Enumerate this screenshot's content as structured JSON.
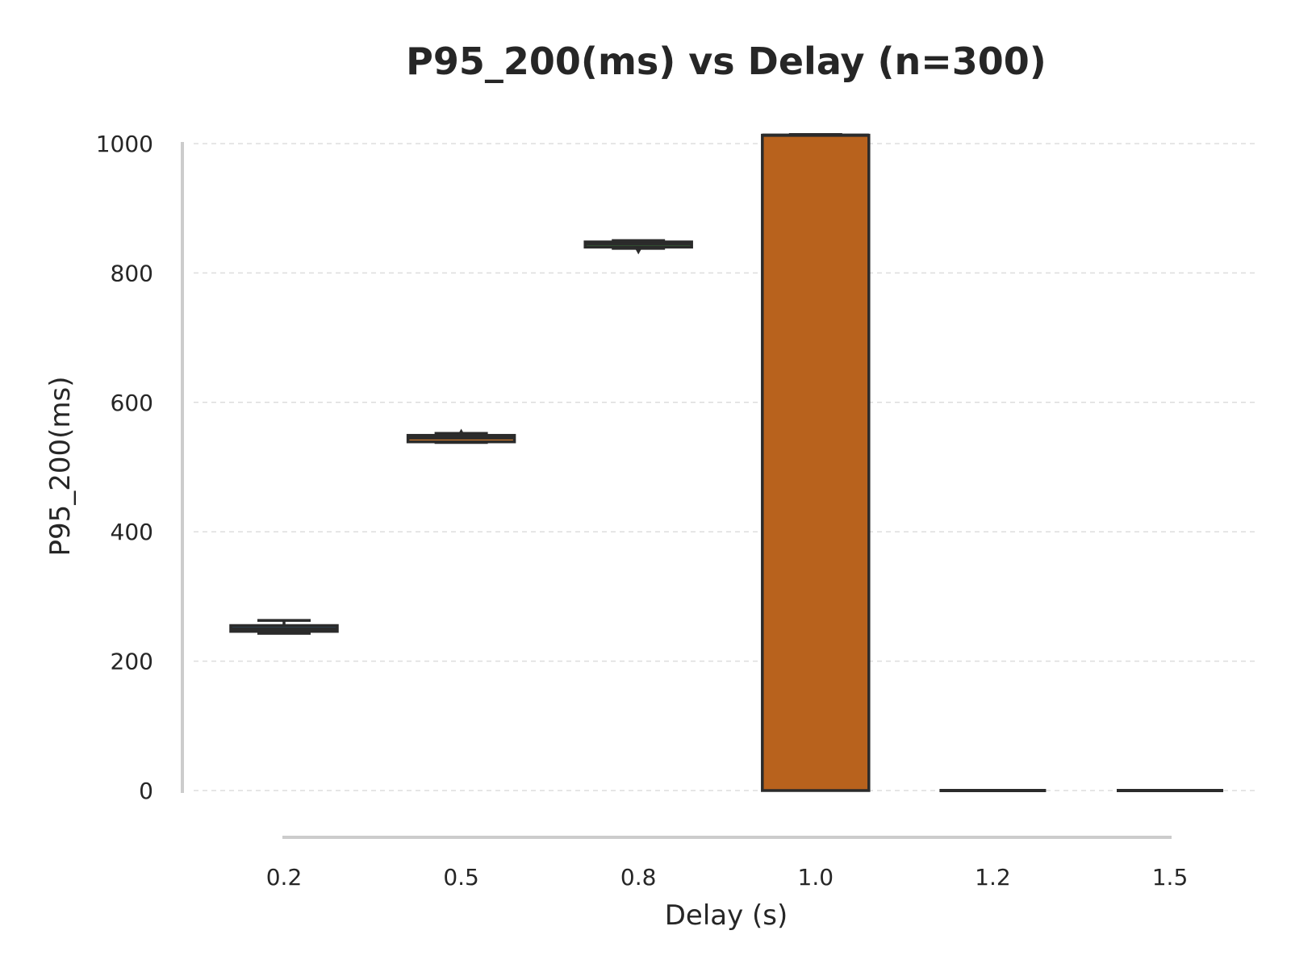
{
  "chart_data": {
    "type": "box",
    "title": "P95_200(ms) vs Delay (n=300)",
    "xlabel": "Delay (s)",
    "ylabel": "P95_200(ms)",
    "ylim": [
      0,
      1000
    ],
    "yticks": [
      "0",
      "200",
      "400",
      "600",
      "800",
      "1000"
    ],
    "grid": "horizontal dashed",
    "categories": [
      "0.2",
      "0.5",
      "0.8",
      "1.0",
      "1.2",
      "1.5"
    ],
    "boxes": [
      {
        "category": "0.2",
        "whisker_low": 243,
        "q1": 246,
        "median": 250,
        "q3": 255,
        "whisker_high": 263,
        "fliers": []
      },
      {
        "category": "0.5",
        "whisker_low": 538,
        "q1": 539,
        "median": 545,
        "q3": 549,
        "whisker_high": 552,
        "fliers": [
          553
        ]
      },
      {
        "category": "0.8",
        "whisker_low": 838,
        "q1": 840,
        "median": 845,
        "q3": 848,
        "whisker_high": 850,
        "fliers": [
          835
        ]
      },
      {
        "category": "1.0",
        "whisker_low": 0,
        "q1": 0,
        "median": 1013,
        "q3": 1013,
        "whisker_high": 1014,
        "fliers": []
      },
      {
        "category": "1.2",
        "whisker_low": 0,
        "q1": 0,
        "median": 0,
        "q3": 0,
        "whisker_high": 0,
        "fliers": []
      },
      {
        "category": "1.5",
        "whisker_low": 0,
        "q1": 0,
        "median": 0,
        "q3": 0,
        "whisker_high": 0,
        "fliers": []
      }
    ],
    "colors": {
      "0.2": "#3274a1",
      "0.5": "#e1812c",
      "0.8": "#3a923a",
      "1.0": "#b8621d",
      "1.2": "#9372b2",
      "1.5": "#845b53",
      "edge": "#2b2b2b"
    }
  }
}
